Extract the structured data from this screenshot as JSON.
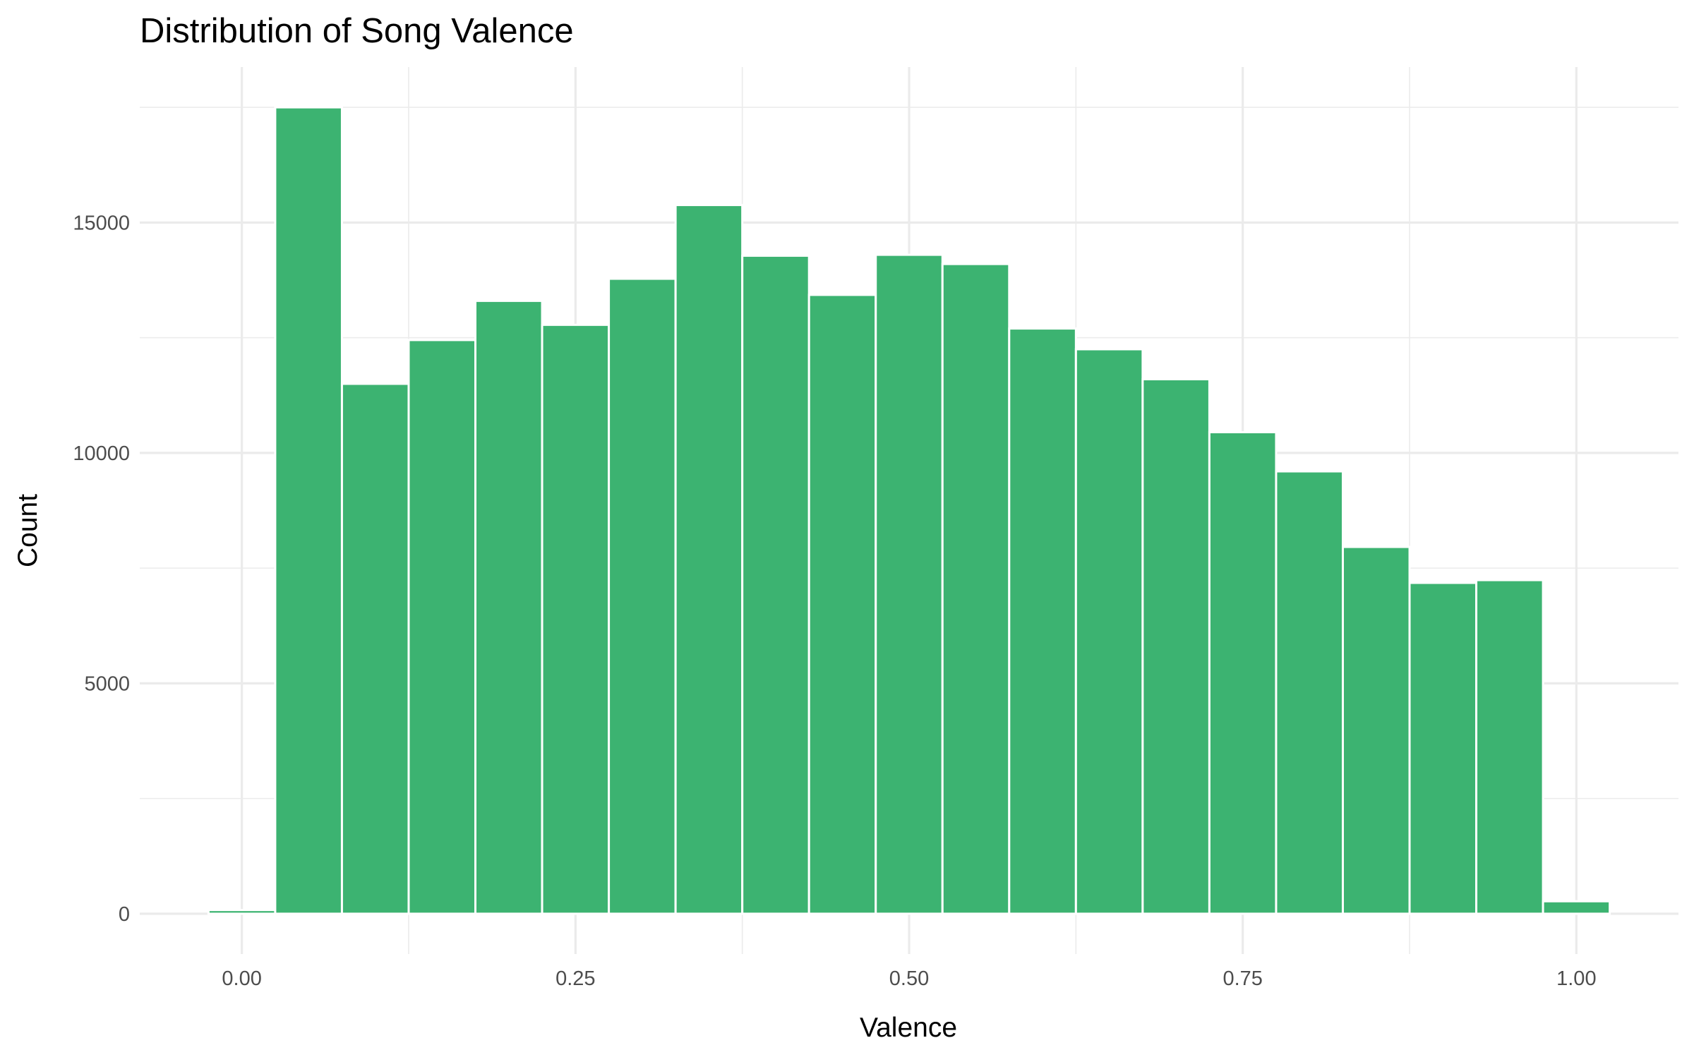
{
  "chart_data": {
    "type": "bar",
    "title": "Distribution of Song Valence",
    "xlabel": "Valence",
    "ylabel": "Count",
    "bin_width": 0.05,
    "bins": [
      {
        "x": 0.0,
        "count": 80
      },
      {
        "x": 0.05,
        "count": 17500
      },
      {
        "x": 0.1,
        "count": 11500
      },
      {
        "x": 0.15,
        "count": 12450
      },
      {
        "x": 0.2,
        "count": 13300
      },
      {
        "x": 0.25,
        "count": 12780
      },
      {
        "x": 0.3,
        "count": 13780
      },
      {
        "x": 0.35,
        "count": 15380
      },
      {
        "x": 0.4,
        "count": 14280
      },
      {
        "x": 0.45,
        "count": 13430
      },
      {
        "x": 0.5,
        "count": 14300
      },
      {
        "x": 0.55,
        "count": 14100
      },
      {
        "x": 0.6,
        "count": 12700
      },
      {
        "x": 0.65,
        "count": 12250
      },
      {
        "x": 0.7,
        "count": 11600
      },
      {
        "x": 0.75,
        "count": 10450
      },
      {
        "x": 0.8,
        "count": 9600
      },
      {
        "x": 0.85,
        "count": 7960
      },
      {
        "x": 0.9,
        "count": 7180
      },
      {
        "x": 0.95,
        "count": 7240
      },
      {
        "x": 1.0,
        "count": 270
      }
    ],
    "xlim": [
      -0.0765,
      1.0765
    ],
    "ylim": [
      -875,
      18375
    ],
    "x_ticks": [
      {
        "value": 0.0,
        "label": "0.00"
      },
      {
        "value": 0.25,
        "label": "0.25"
      },
      {
        "value": 0.5,
        "label": "0.50"
      },
      {
        "value": 0.75,
        "label": "0.75"
      },
      {
        "value": 1.0,
        "label": "1.00"
      }
    ],
    "y_ticks": [
      {
        "value": 0,
        "label": "0"
      },
      {
        "value": 5000,
        "label": "5000"
      },
      {
        "value": 10000,
        "label": "10000"
      },
      {
        "value": 15000,
        "label": "15000"
      }
    ],
    "grid": true,
    "legend": "none",
    "colors": {
      "bar_fill": "#3cb371",
      "bar_outline": "#ffffff",
      "grid": "#ebebeb",
      "background": "#ffffff"
    }
  }
}
